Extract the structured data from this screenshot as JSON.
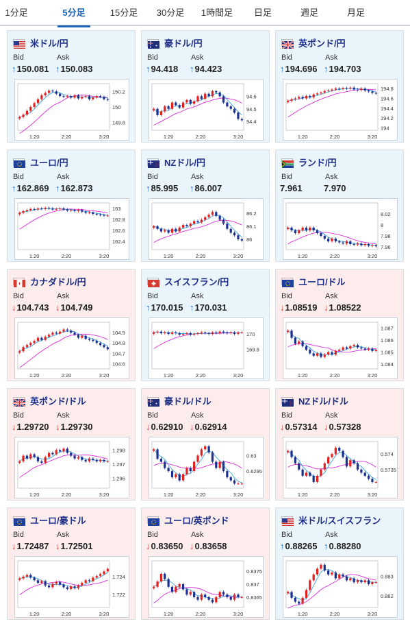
{
  "tabs": [
    {
      "label": "1分足",
      "active": false
    },
    {
      "label": "5分足",
      "active": true
    },
    {
      "label": "15分足",
      "active": false
    },
    {
      "label": "30分足",
      "active": false
    },
    {
      "label": "1時間足",
      "active": false
    },
    {
      "label": "日足",
      "active": false
    },
    {
      "label": "週足",
      "active": false
    },
    {
      "label": "月足",
      "active": false
    }
  ],
  "labels": {
    "bid": "Bid",
    "ask": "Ask"
  },
  "colors": {
    "accent": "#1a62b6",
    "card_up": "#eaf4fb",
    "card_down": "#fcecec",
    "arrow_up": "#1a66c4",
    "arrow_down": "#d23a32",
    "candle_up": "#e32020",
    "candle_down": "#1c2f8f",
    "ma_short": "#3aa3d9",
    "ma_long": "#d92bd9"
  },
  "cards": [
    {
      "pair": "米ドル/円",
      "flag": "flag-us-icon",
      "direction": "up",
      "bid": "150.081",
      "ask": "150.083",
      "chart_data": {
        "type": "candlestick",
        "x_ticks": [
          "1:20",
          "2:20",
          "3:20"
        ],
        "y_ticks": [
          "150.2",
          "150",
          "149.8"
        ],
        "ylim": [
          149.7,
          150.3
        ],
        "path": [
          149.87,
          149.9,
          149.95,
          150.0,
          150.05,
          150.1,
          150.15,
          150.18,
          150.21,
          150.2,
          150.17,
          150.14,
          150.13,
          150.14,
          150.12,
          150.15,
          150.11,
          150.13,
          150.14,
          150.1,
          150.12,
          150.14,
          150.13,
          150.1,
          150.09
        ]
      }
    },
    {
      "pair": "豪ドル/円",
      "flag": "flag-au-icon",
      "direction": "up",
      "bid": "94.418",
      "ask": "94.423",
      "chart_data": {
        "type": "candlestick",
        "x_ticks": [
          "1:20",
          "2:20",
          "3:20"
        ],
        "y_ticks": [
          "94.6",
          "94.5",
          "94.4"
        ],
        "ylim": [
          94.33,
          94.7
        ],
        "path": [
          94.5,
          94.45,
          94.48,
          94.52,
          94.5,
          94.55,
          94.53,
          94.51,
          94.55,
          94.57,
          94.54,
          94.56,
          94.6,
          94.58,
          94.62,
          94.6,
          94.64,
          94.63,
          94.6,
          94.55,
          94.52,
          94.5,
          94.47,
          94.42,
          94.41
        ]
      }
    },
    {
      "pair": "英ポンド/円",
      "flag": "flag-uk-icon",
      "direction": "up",
      "bid": "194.696",
      "ask": "194.703",
      "chart_data": {
        "type": "candlestick",
        "x_ticks": [
          "1:20",
          "2:20",
          "3:20"
        ],
        "y_ticks": [
          "194.8",
          "194.6",
          "194.4",
          "194.2",
          "194"
        ],
        "ylim": [
          193.95,
          194.9
        ],
        "path": [
          194.55,
          194.58,
          194.6,
          194.63,
          194.6,
          194.65,
          194.62,
          194.68,
          194.7,
          194.72,
          194.75,
          194.76,
          194.78,
          194.8,
          194.79,
          194.81,
          194.8,
          194.82,
          194.78,
          194.77,
          194.8,
          194.76,
          194.74,
          194.71,
          194.7
        ]
      }
    },
    {
      "pair": "ユーロ/円",
      "flag": "flag-eu-icon",
      "direction": "up",
      "bid": "162.869",
      "ask": "162.873",
      "chart_data": {
        "type": "candlestick",
        "x_ticks": [
          "1:20",
          "2:20",
          "3:20"
        ],
        "y_ticks": [
          "163",
          "162.8",
          "162.6",
          "162.4"
        ],
        "ylim": [
          162.25,
          163.1
        ],
        "path": [
          162.92,
          162.95,
          162.97,
          162.99,
          162.98,
          163.0,
          162.99,
          163.01,
          163.0,
          162.98,
          162.99,
          163.0,
          162.98,
          162.96,
          162.97,
          162.95,
          162.97,
          162.94,
          162.92,
          162.93,
          162.9,
          162.89,
          162.88,
          162.87,
          162.87
        ]
      }
    },
    {
      "pair": "NZドル/円",
      "flag": "flag-nz-icon",
      "direction": "up",
      "bid": "85.995",
      "ask": "86.007",
      "chart_data": {
        "type": "candlestick",
        "x_ticks": [
          "1:20",
          "2:20",
          "3:20"
        ],
        "y_ticks": [
          "86.2",
          "86.1",
          "86"
        ],
        "ylim": [
          85.92,
          86.28
        ],
        "path": [
          86.1,
          86.08,
          86.06,
          86.07,
          86.05,
          86.08,
          86.06,
          86.09,
          86.11,
          86.1,
          86.12,
          86.14,
          86.13,
          86.15,
          86.17,
          86.19,
          86.21,
          86.18,
          86.15,
          86.12,
          86.08,
          86.05,
          86.03,
          86.0,
          85.99
        ]
      }
    },
    {
      "pair": "ランド/円",
      "flag": "flag-za-icon",
      "direction": "none",
      "bid": "7.961",
      "ask": "7.970",
      "chart_data": {
        "type": "candlestick",
        "x_ticks": [
          "1:20",
          "2:20",
          "3:20"
        ],
        "y_ticks": [
          "8.02",
          "8",
          "7.98",
          "7.96"
        ],
        "ylim": [
          7.955,
          8.04
        ],
        "path": [
          7.995,
          7.99,
          7.985,
          7.99,
          7.995,
          7.99,
          7.995,
          7.99,
          7.985,
          7.98,
          7.975,
          7.97,
          7.975,
          7.97,
          7.968,
          7.966,
          7.97,
          7.965,
          7.964,
          7.966,
          7.963,
          7.965,
          7.962,
          7.963,
          7.961
        ]
      }
    },
    {
      "pair": "カナダドル/円",
      "flag": "flag-ca-icon",
      "direction": "down",
      "bid": "104.743",
      "ask": "104.749",
      "chart_data": {
        "type": "candlestick",
        "x_ticks": [
          "1:20",
          "2:20",
          "3:20"
        ],
        "y_ticks": [
          "104.9",
          "104.8",
          "104.7",
          "104.6"
        ],
        "ylim": [
          104.55,
          105.0
        ],
        "path": [
          104.72,
          104.76,
          104.78,
          104.8,
          104.82,
          104.85,
          104.83,
          104.86,
          104.88,
          104.9,
          104.89,
          104.91,
          104.93,
          104.92,
          104.9,
          104.88,
          104.85,
          104.87,
          104.84,
          104.83,
          104.82,
          104.8,
          104.78,
          104.76,
          104.74
        ]
      }
    },
    {
      "pair": "スイスフラン/円",
      "flag": "flag-ch-icon",
      "direction": "up",
      "bid": "170.015",
      "ask": "170.031",
      "chart_data": {
        "type": "candlestick",
        "x_ticks": [
          "1:20",
          "2:20",
          "3:20"
        ],
        "y_ticks": [
          "170",
          "169.8"
        ],
        "ylim": [
          169.55,
          170.15
        ],
        "path": [
          170.02,
          170.03,
          170.01,
          170.02,
          170.0,
          170.02,
          170.01,
          169.99,
          170.0,
          170.01,
          169.99,
          170.0,
          170.01,
          170.02,
          170.01,
          170.0,
          170.02,
          170.01,
          170.03,
          170.02,
          170.01,
          170.02,
          170.0,
          170.02,
          170.02
        ]
      }
    },
    {
      "pair": "ユーロ/ドル",
      "flag": "flag-eu-icon",
      "direction": "down",
      "bid": "1.08519",
      "ask": "1.08522",
      "chart_data": {
        "type": "candlestick",
        "x_ticks": [
          "1:20",
          "2:20",
          "3:20"
        ],
        "y_ticks": [
          "1.087",
          "1.086",
          "1.085",
          "1.084"
        ],
        "ylim": [
          1.0836,
          1.0875
        ],
        "path": [
          1.0868,
          1.0862,
          1.0857,
          1.0859,
          1.0855,
          1.0852,
          1.0849,
          1.0847,
          1.0849,
          1.0846,
          1.0848,
          1.085,
          1.0848,
          1.0851,
          1.0852,
          1.0854,
          1.0853,
          1.0855,
          1.0856,
          1.0854,
          1.0853,
          1.0852,
          1.0853,
          1.0851,
          1.0852
        ]
      }
    },
    {
      "pair": "英ポンド/ドル",
      "flag": "flag-uk-icon",
      "direction": "down",
      "bid": "1.29720",
      "ask": "1.29730",
      "chart_data": {
        "type": "candlestick",
        "x_ticks": [
          "1:20",
          "2:20",
          "3:20"
        ],
        "y_ticks": [
          "1.298",
          "1.297",
          "1.296"
        ],
        "ylim": [
          1.2953,
          1.2986
        ],
        "path": [
          1.2972,
          1.2976,
          1.2974,
          1.2977,
          1.2975,
          1.2972,
          1.2971,
          1.2975,
          1.2978,
          1.2977,
          1.298,
          1.2979,
          1.2981,
          1.2978,
          1.2976,
          1.2974,
          1.2975,
          1.2973,
          1.2972,
          1.2974,
          1.2973,
          1.2972,
          1.2973,
          1.2972,
          1.2972
        ]
      }
    },
    {
      "pair": "豪ドル/ドル",
      "flag": "flag-au-icon",
      "direction": "down",
      "bid": "0.62910",
      "ask": "0.62914",
      "chart_data": {
        "type": "candlestick",
        "x_ticks": [
          "1:20",
          "2:20",
          "3:20"
        ],
        "y_ticks": [
          "0.63",
          "0.6295"
        ],
        "ylim": [
          0.62895,
          0.63045
        ],
        "path": [
          0.6302,
          0.6299,
          0.6298,
          0.6296,
          0.6295,
          0.6293,
          0.6294,
          0.6292,
          0.6294,
          0.6296,
          0.6295,
          0.6298,
          0.63,
          0.6302,
          0.6303,
          0.6301,
          0.6298,
          0.6296,
          0.6298,
          0.6295,
          0.6293,
          0.6292,
          0.6291,
          0.6291,
          0.6291
        ]
      }
    },
    {
      "pair": "NZドル/ドル",
      "flag": "flag-nz-icon",
      "direction": "down",
      "bid": "0.57314",
      "ask": "0.57328",
      "chart_data": {
        "type": "candlestick",
        "x_ticks": [
          "1:20",
          "2:20",
          "3:20"
        ],
        "y_ticks": [
          "0.574",
          "0.5735"
        ],
        "ylim": [
          0.5729,
          0.5744
        ],
        "path": [
          0.5741,
          0.5739,
          0.5737,
          0.5735,
          0.5733,
          0.5734,
          0.5733,
          0.5731,
          0.5733,
          0.5735,
          0.5737,
          0.5739,
          0.574,
          0.5742,
          0.5741,
          0.5739,
          0.5736,
          0.5738,
          0.5737,
          0.5735,
          0.5734,
          0.5733,
          0.5732,
          0.5731,
          0.5731
        ]
      }
    },
    {
      "pair": "ユーロ/豪ドル",
      "flag": "flag-eu-icon",
      "direction": "down",
      "bid": "1.72487",
      "ask": "1.72501",
      "chart_data": {
        "type": "candlestick",
        "x_ticks": [
          "1:20",
          "2:20",
          "3:20"
        ],
        "y_ticks": [
          "1.724",
          "1.722"
        ],
        "ylim": [
          1.7205,
          1.7258
        ],
        "path": [
          1.7238,
          1.724,
          1.7242,
          1.7239,
          1.7236,
          1.7233,
          1.7235,
          1.723,
          1.7228,
          1.7232,
          1.7234,
          1.7231,
          1.7228,
          1.7226,
          1.7229,
          1.7227,
          1.723,
          1.7233,
          1.7236,
          1.7235,
          1.7239,
          1.7241,
          1.7243,
          1.7246,
          1.7249
        ]
      }
    },
    {
      "pair": "ユーロ/英ポンド",
      "flag": "flag-eu-icon",
      "direction": "down",
      "bid": "0.83650",
      "ask": "0.83658",
      "chart_data": {
        "type": "candlestick",
        "x_ticks": [
          "1:20",
          "2:20",
          "3:20"
        ],
        "y_ticks": [
          "0.8375",
          "0.837",
          "0.8365"
        ],
        "ylim": [
          0.8361,
          0.8379
        ],
        "path": [
          0.8369,
          0.8371,
          0.8374,
          0.8372,
          0.8369,
          0.8367,
          0.8369,
          0.837,
          0.8368,
          0.8366,
          0.8367,
          0.8365,
          0.8364,
          0.8366,
          0.8365,
          0.8364,
          0.8363,
          0.8365,
          0.8367,
          0.8366,
          0.8365,
          0.8364,
          0.8366,
          0.8365,
          0.8365
        ]
      }
    },
    {
      "pair": "米ドル/スイスフラン",
      "flag": "flag-us-icon",
      "direction": "up",
      "bid": "0.88265",
      "ask": "0.88280",
      "chart_data": {
        "type": "candlestick",
        "x_ticks": [
          "1:20",
          "2:20",
          "3:20"
        ],
        "y_ticks": [
          "0.883",
          "0.882"
        ],
        "ylim": [
          0.8814,
          0.8838
        ],
        "path": [
          0.8822,
          0.8819,
          0.8817,
          0.8816,
          0.8819,
          0.8823,
          0.8828,
          0.8831,
          0.8834,
          0.8836,
          0.8833,
          0.8831,
          0.8832,
          0.8829,
          0.8831,
          0.883,
          0.8828,
          0.8829,
          0.8827,
          0.8828,
          0.8827,
          0.8828,
          0.8826,
          0.8827,
          0.8827
        ]
      }
    }
  ]
}
